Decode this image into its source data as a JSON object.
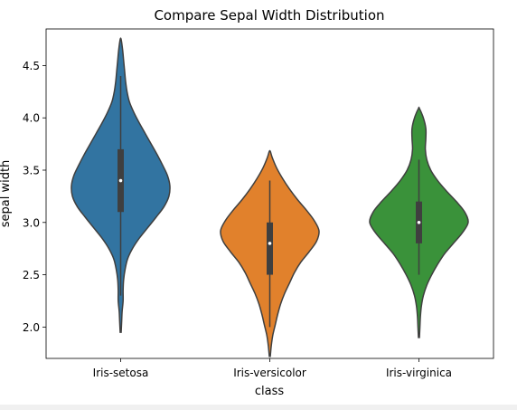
{
  "chart_data": {
    "type": "violin",
    "title": "Compare Sepal Width Distribution",
    "xlabel": "class",
    "ylabel": "sepal width",
    "ylim": [
      1.7,
      4.85
    ],
    "yticks": [
      "2.0",
      "2.5",
      "3.0",
      "3.5",
      "4.0",
      "4.5"
    ],
    "grid": false,
    "categories": [
      "Iris-setosa",
      "Iris-versicolor",
      "Iris-virginica"
    ],
    "colors": [
      "#3274a1",
      "#e1812c",
      "#3a923a"
    ],
    "edge_color": "#3f3f3f",
    "violins": [
      {
        "name": "Iris-setosa",
        "min": 2.3,
        "q1": 3.1,
        "median": 3.4,
        "q3": 3.7,
        "max": 4.4,
        "range": [
          1.95,
          4.75
        ],
        "profile": [
          [
            1.95,
            0.01
          ],
          [
            2.05,
            0.02
          ],
          [
            2.15,
            0.03
          ],
          [
            2.25,
            0.05
          ],
          [
            2.35,
            0.05
          ],
          [
            2.45,
            0.06
          ],
          [
            2.55,
            0.09
          ],
          [
            2.65,
            0.14
          ],
          [
            2.75,
            0.24
          ],
          [
            2.85,
            0.38
          ],
          [
            2.95,
            0.55
          ],
          [
            3.05,
            0.72
          ],
          [
            3.15,
            0.88
          ],
          [
            3.25,
            0.98
          ],
          [
            3.35,
            1.0
          ],
          [
            3.45,
            0.95
          ],
          [
            3.55,
            0.85
          ],
          [
            3.65,
            0.74
          ],
          [
            3.75,
            0.62
          ],
          [
            3.85,
            0.5
          ],
          [
            3.95,
            0.38
          ],
          [
            4.05,
            0.27
          ],
          [
            4.15,
            0.18
          ],
          [
            4.25,
            0.13
          ],
          [
            4.35,
            0.1
          ],
          [
            4.45,
            0.08
          ],
          [
            4.55,
            0.06
          ],
          [
            4.65,
            0.04
          ],
          [
            4.75,
            0.01
          ]
        ]
      },
      {
        "name": "Iris-versicolor",
        "min": 2.0,
        "q1": 2.5,
        "median": 2.8,
        "q3": 3.0,
        "max": 3.4,
        "range": [
          1.72,
          3.68
        ],
        "profile": [
          [
            1.72,
            0.01
          ],
          [
            1.82,
            0.03
          ],
          [
            1.92,
            0.06
          ],
          [
            2.02,
            0.11
          ],
          [
            2.12,
            0.16
          ],
          [
            2.22,
            0.22
          ],
          [
            2.32,
            0.3
          ],
          [
            2.42,
            0.4
          ],
          [
            2.52,
            0.5
          ],
          [
            2.62,
            0.63
          ],
          [
            2.72,
            0.8
          ],
          [
            2.82,
            0.95
          ],
          [
            2.92,
            1.0
          ],
          [
            3.02,
            0.9
          ],
          [
            3.12,
            0.74
          ],
          [
            3.22,
            0.56
          ],
          [
            3.32,
            0.4
          ],
          [
            3.42,
            0.26
          ],
          [
            3.52,
            0.14
          ],
          [
            3.62,
            0.05
          ],
          [
            3.68,
            0.01
          ]
        ]
      },
      {
        "name": "Iris-virginica",
        "min": 2.5,
        "q1": 2.8,
        "median": 3.0,
        "q3": 3.2,
        "max": 3.6,
        "range": [
          1.9,
          4.09
        ],
        "profile": [
          [
            1.9,
            0.01
          ],
          [
            2.0,
            0.02
          ],
          [
            2.1,
            0.03
          ],
          [
            2.2,
            0.05
          ],
          [
            2.3,
            0.09
          ],
          [
            2.4,
            0.16
          ],
          [
            2.5,
            0.26
          ],
          [
            2.6,
            0.38
          ],
          [
            2.7,
            0.52
          ],
          [
            2.8,
            0.7
          ],
          [
            2.9,
            0.88
          ],
          [
            3.0,
            1.0
          ],
          [
            3.1,
            0.93
          ],
          [
            3.2,
            0.76
          ],
          [
            3.3,
            0.56
          ],
          [
            3.4,
            0.38
          ],
          [
            3.5,
            0.24
          ],
          [
            3.6,
            0.16
          ],
          [
            3.7,
            0.13
          ],
          [
            3.8,
            0.14
          ],
          [
            3.9,
            0.14
          ],
          [
            4.0,
            0.09
          ],
          [
            4.09,
            0.01
          ]
        ]
      }
    ]
  }
}
